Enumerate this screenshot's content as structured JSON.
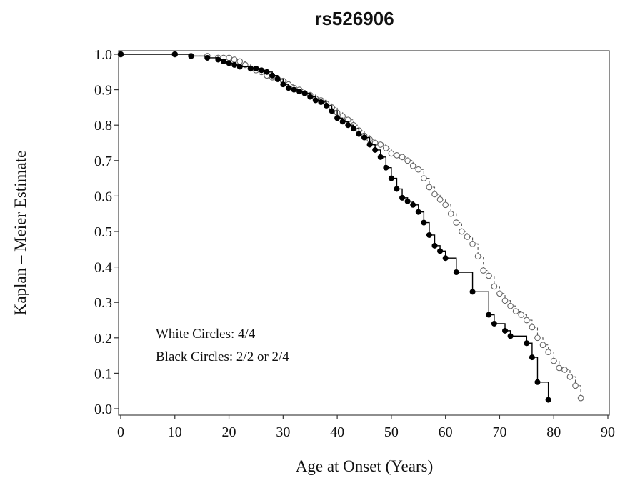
{
  "chart_data": {
    "type": "line",
    "title": "rs526906",
    "xlabel": "Age at Onset (Years)",
    "ylabel": "Kaplan – Meier Estimate",
    "xlim": [
      0,
      90
    ],
    "ylim": [
      0.0,
      1.0
    ],
    "x_ticks": [
      "0",
      "10",
      "20",
      "30",
      "40",
      "50",
      "60",
      "70",
      "80",
      "90"
    ],
    "y_ticks": [
      "0.0",
      "0.1",
      "0.2",
      "0.3",
      "0.4",
      "0.5",
      "0.6",
      "0.7",
      "0.8",
      "0.9",
      "1.0"
    ],
    "grid": false,
    "annotations": [
      "White Circles: 4/4",
      "Black Circles: 2/2 or 2/4"
    ],
    "series": [
      {
        "marker": "open-circle",
        "line_style": "dashed",
        "color": "#555555",
        "x": [
          0,
          10,
          13,
          16,
          18,
          19,
          20,
          21,
          22,
          23,
          24,
          25,
          26,
          27,
          28,
          29,
          30,
          31,
          32,
          33,
          34,
          35,
          36,
          37,
          38,
          39,
          40,
          41,
          42,
          43,
          44,
          45,
          46,
          47,
          48,
          49,
          50,
          51,
          52,
          53,
          54,
          55,
          56,
          57,
          58,
          59,
          60,
          61,
          62,
          63,
          64,
          65,
          66,
          67,
          68,
          69,
          70,
          71,
          72,
          73,
          74,
          75,
          76,
          77,
          78,
          79,
          80,
          81,
          82,
          83,
          84,
          85
        ],
        "y": [
          1.0,
          1.0,
          0.995,
          0.995,
          0.99,
          0.99,
          0.99,
          0.985,
          0.98,
          0.97,
          0.96,
          0.955,
          0.95,
          0.94,
          0.935,
          0.93,
          0.925,
          0.915,
          0.905,
          0.9,
          0.89,
          0.885,
          0.875,
          0.87,
          0.86,
          0.85,
          0.835,
          0.825,
          0.815,
          0.8,
          0.785,
          0.77,
          0.76,
          0.75,
          0.745,
          0.735,
          0.72,
          0.715,
          0.71,
          0.7,
          0.685,
          0.675,
          0.65,
          0.625,
          0.605,
          0.59,
          0.575,
          0.55,
          0.525,
          0.5,
          0.485,
          0.465,
          0.43,
          0.39,
          0.375,
          0.345,
          0.325,
          0.305,
          0.29,
          0.275,
          0.265,
          0.25,
          0.23,
          0.2,
          0.18,
          0.16,
          0.135,
          0.115,
          0.11,
          0.09,
          0.065,
          0.03
        ]
      },
      {
        "marker": "filled-circle",
        "line_style": "solid",
        "color": "#000000",
        "x": [
          0,
          10,
          13,
          16,
          18,
          19,
          20,
          21,
          22,
          24,
          25,
          26,
          27,
          28,
          29,
          30,
          31,
          32,
          33,
          34,
          35,
          36,
          37,
          38,
          39,
          40,
          41,
          42,
          43,
          44,
          45,
          46,
          47,
          48,
          49,
          50,
          51,
          52,
          53,
          54,
          55,
          56,
          57,
          58,
          59,
          60,
          62,
          65,
          68,
          69,
          71,
          72,
          75,
          76,
          77,
          79
        ],
        "y": [
          1.0,
          1.0,
          0.995,
          0.99,
          0.985,
          0.98,
          0.975,
          0.97,
          0.965,
          0.96,
          0.96,
          0.955,
          0.95,
          0.94,
          0.93,
          0.915,
          0.905,
          0.9,
          0.895,
          0.89,
          0.88,
          0.87,
          0.865,
          0.855,
          0.84,
          0.82,
          0.81,
          0.8,
          0.79,
          0.775,
          0.765,
          0.745,
          0.73,
          0.71,
          0.68,
          0.65,
          0.62,
          0.595,
          0.585,
          0.575,
          0.555,
          0.525,
          0.49,
          0.46,
          0.445,
          0.425,
          0.385,
          0.33,
          0.265,
          0.24,
          0.22,
          0.205,
          0.185,
          0.145,
          0.075,
          0.025
        ]
      }
    ]
  }
}
